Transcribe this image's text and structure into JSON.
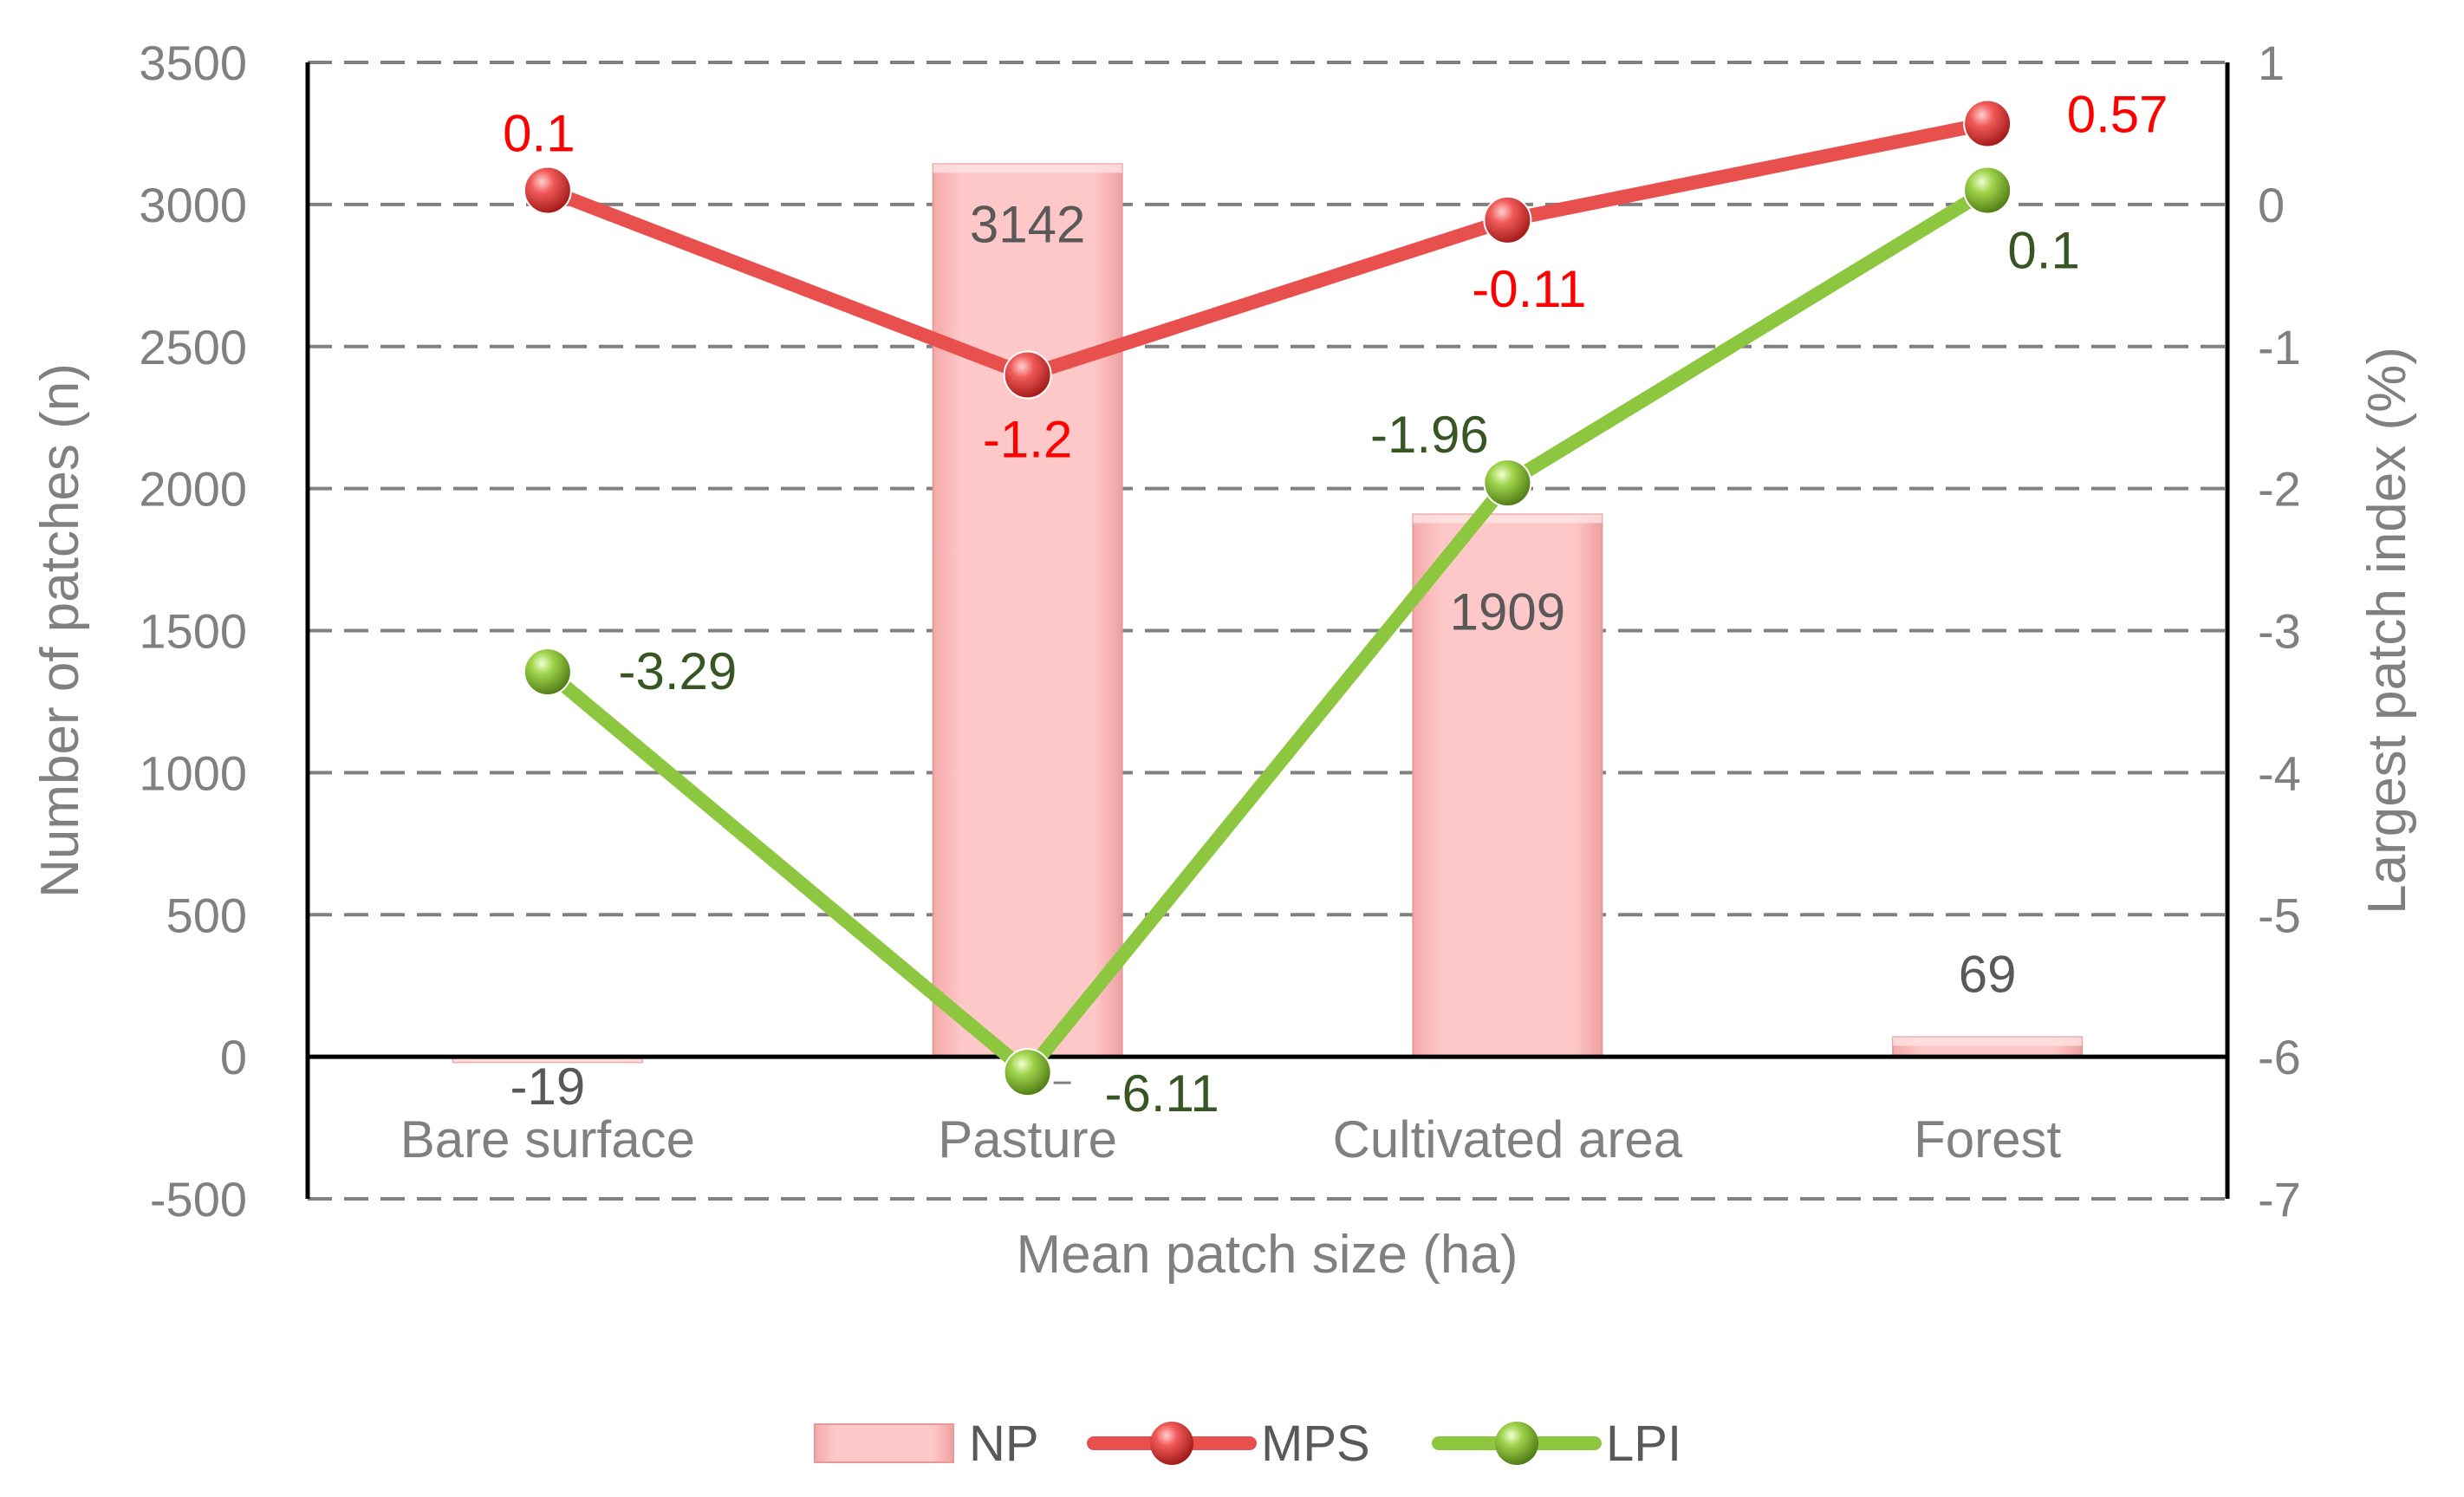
{
  "chart_data": {
    "type": "bar",
    "categories": [
      "Bare surface",
      "Pasture",
      "Cultivated area",
      "Forest"
    ],
    "xlabel": "Mean patch size (ha)",
    "ylabel": "Number of patches (n)",
    "y2label": "Largest patch index (%)",
    "ylim": [
      -500,
      3500
    ],
    "y_ticks": [
      "3500",
      "3000",
      "2500",
      "2000",
      "1500",
      "1000",
      "500",
      "0",
      "-500"
    ],
    "y2lim": [
      -7,
      1
    ],
    "y2_ticks": [
      "1",
      "0",
      "-1",
      "-2",
      "-3",
      "-4",
      "-5",
      "-6",
      "-7"
    ],
    "grid": true,
    "legend_position": "bottom",
    "series": [
      {
        "name": "NP",
        "kind": "bar",
        "axis": "left",
        "values": [
          -19,
          3142,
          1909,
          69
        ],
        "labels": [
          "-19",
          "3142",
          "1909",
          "69"
        ],
        "color": "#FFC0C0",
        "label_color": "#595959"
      },
      {
        "name": "MPS",
        "kind": "line",
        "axis": "right",
        "values": [
          0.1,
          -1.2,
          -0.11,
          0.57
        ],
        "labels": [
          "0.1",
          "-1.2",
          "-0.11",
          "0.57"
        ],
        "color": "#E8504E",
        "label_color": "#FF0000"
      },
      {
        "name": "LPI",
        "kind": "line",
        "axis": "right",
        "values": [
          -3.29,
          -6.11,
          -1.96,
          0.1
        ],
        "labels": [
          "-3.29",
          "-6.11",
          "-1.96",
          "0.1"
        ],
        "color": "#8DC63F",
        "label_color": "#375623"
      }
    ]
  }
}
